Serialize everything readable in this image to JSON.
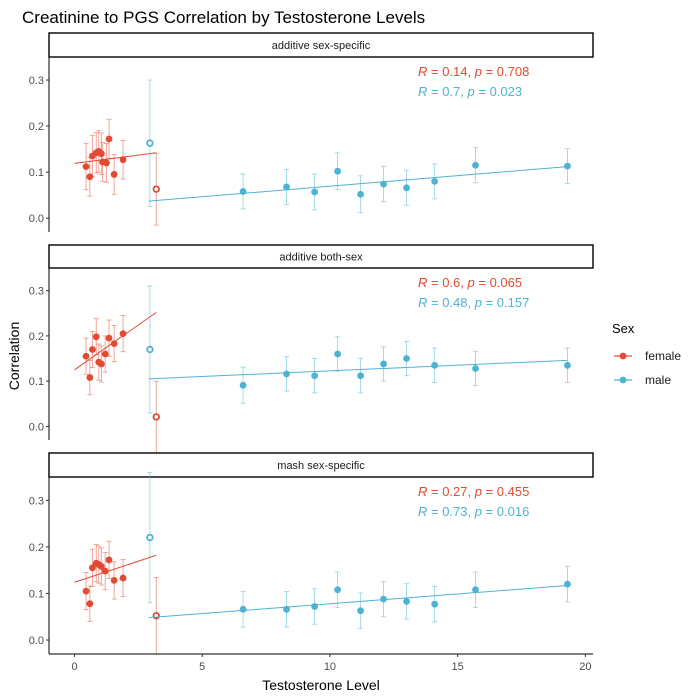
{
  "chart_data": {
    "type": "scatter",
    "title": "Creatinine to PGS Correlation by Testosterone Levels",
    "xlabel": "Testosterone Level",
    "ylabel": "Correlation",
    "xlim": [
      -1,
      20.3
    ],
    "ylim": [
      -0.03,
      0.35
    ],
    "x_ticks": [
      0,
      5,
      10,
      15,
      20
    ],
    "y_ticks": [
      0.0,
      0.1,
      0.2,
      0.3
    ],
    "y_tick_labels": [
      "0.0",
      "0.1",
      "0.2",
      "0.3"
    ],
    "grid": false,
    "legend": {
      "title": "Sex",
      "position": "right",
      "entries": [
        {
          "label": "female",
          "color": "#E24A33"
        },
        {
          "label": "male",
          "color": "#4DB3D3"
        }
      ]
    },
    "colors": {
      "female": "#E24A33",
      "male": "#4DB3D3"
    },
    "panels": [
      {
        "strip": "additive sex-specific",
        "stats": [
          {
            "sex": "female",
            "r_label": "R",
            "r_value": " = 0.14, ",
            "p_label": "p",
            "p_value": " = 0.708"
          },
          {
            "sex": "male",
            "r_label": "R",
            "r_value": " = 0.7, ",
            "p_label": "p",
            "p_value": " = 0.023"
          }
        ],
        "series": [
          {
            "name": "female",
            "points": [
              {
                "x": 0.45,
                "y": 0.112,
                "lo": 0.062,
                "hi": 0.162
              },
              {
                "x": 0.6,
                "y": 0.09,
                "lo": 0.048,
                "hi": 0.132
              },
              {
                "x": 0.7,
                "y": 0.135,
                "lo": 0.09,
                "hi": 0.18
              },
              {
                "x": 0.85,
                "y": 0.142,
                "lo": 0.098,
                "hi": 0.186
              },
              {
                "x": 0.95,
                "y": 0.145,
                "lo": 0.1,
                "hi": 0.19
              },
              {
                "x": 1.05,
                "y": 0.14,
                "lo": 0.095,
                "hi": 0.185
              },
              {
                "x": 1.1,
                "y": 0.122,
                "lo": 0.08,
                "hi": 0.164
              },
              {
                "x": 1.25,
                "y": 0.12,
                "lo": 0.078,
                "hi": 0.162
              },
              {
                "x": 1.35,
                "y": 0.172,
                "lo": 0.13,
                "hi": 0.214
              },
              {
                "x": 1.55,
                "y": 0.095,
                "lo": 0.052,
                "hi": 0.138
              },
              {
                "x": 1.9,
                "y": 0.127,
                "lo": 0.085,
                "hi": 0.169
              },
              {
                "x": 3.2,
                "y": 0.063,
                "lo": -0.015,
                "hi": 0.141,
                "hollow": true
              }
            ],
            "trend": {
              "x0": 0.0,
              "y0": 0.119,
              "x1": 3.2,
              "y1": 0.142
            }
          },
          {
            "name": "male",
            "points": [
              {
                "x": 2.95,
                "y": 0.163,
                "lo": 0.025,
                "hi": 0.3,
                "hollow": true
              },
              {
                "x": 6.6,
                "y": 0.058,
                "lo": 0.02,
                "hi": 0.096
              },
              {
                "x": 8.3,
                "y": 0.068,
                "lo": 0.03,
                "hi": 0.106
              },
              {
                "x": 9.4,
                "y": 0.057,
                "lo": 0.018,
                "hi": 0.096
              },
              {
                "x": 10.3,
                "y": 0.102,
                "lo": 0.062,
                "hi": 0.142
              },
              {
                "x": 11.2,
                "y": 0.052,
                "lo": 0.012,
                "hi": 0.092
              },
              {
                "x": 12.1,
                "y": 0.074,
                "lo": 0.036,
                "hi": 0.112
              },
              {
                "x": 13.0,
                "y": 0.066,
                "lo": 0.028,
                "hi": 0.104
              },
              {
                "x": 14.1,
                "y": 0.08,
                "lo": 0.042,
                "hi": 0.118
              },
              {
                "x": 15.7,
                "y": 0.115,
                "lo": 0.077,
                "hi": 0.153
              },
              {
                "x": 19.3,
                "y": 0.113,
                "lo": 0.075,
                "hi": 0.151
              }
            ],
            "trend": {
              "x0": 2.9,
              "y0": 0.037,
              "x1": 19.3,
              "y1": 0.112
            }
          }
        ]
      },
      {
        "strip": "additive both-sex",
        "stats": [
          {
            "sex": "female",
            "r_label": "R",
            "r_value": " = 0.6, ",
            "p_label": "p",
            "p_value": " = 0.065"
          },
          {
            "sex": "male",
            "r_label": "R",
            "r_value": " = 0.48, ",
            "p_label": "p",
            "p_value": " = 0.157"
          }
        ],
        "series": [
          {
            "name": "female",
            "points": [
              {
                "x": 0.45,
                "y": 0.155,
                "lo": 0.115,
                "hi": 0.195
              },
              {
                "x": 0.6,
                "y": 0.108,
                "lo": 0.07,
                "hi": 0.146
              },
              {
                "x": 0.7,
                "y": 0.17,
                "lo": 0.13,
                "hi": 0.21
              },
              {
                "x": 0.85,
                "y": 0.198,
                "lo": 0.158,
                "hi": 0.238
              },
              {
                "x": 0.95,
                "y": 0.142,
                "lo": 0.102,
                "hi": 0.182
              },
              {
                "x": 1.05,
                "y": 0.138,
                "lo": 0.098,
                "hi": 0.178
              },
              {
                "x": 1.2,
                "y": 0.16,
                "lo": 0.12,
                "hi": 0.2
              },
              {
                "x": 1.35,
                "y": 0.195,
                "lo": 0.155,
                "hi": 0.235
              },
              {
                "x": 1.55,
                "y": 0.183,
                "lo": 0.143,
                "hi": 0.223
              },
              {
                "x": 1.9,
                "y": 0.205,
                "lo": 0.165,
                "hi": 0.245
              },
              {
                "x": 3.2,
                "y": 0.021,
                "lo": -0.06,
                "hi": 0.1,
                "hollow": true
              }
            ],
            "trend": {
              "x0": 0.0,
              "y0": 0.125,
              "x1": 3.2,
              "y1": 0.252
            }
          },
          {
            "name": "male",
            "points": [
              {
                "x": 2.95,
                "y": 0.17,
                "lo": 0.03,
                "hi": 0.31,
                "hollow": true
              },
              {
                "x": 6.6,
                "y": 0.091,
                "lo": 0.051,
                "hi": 0.131
              },
              {
                "x": 8.3,
                "y": 0.116,
                "lo": 0.078,
                "hi": 0.154
              },
              {
                "x": 9.4,
                "y": 0.112,
                "lo": 0.074,
                "hi": 0.15
              },
              {
                "x": 10.3,
                "y": 0.16,
                "lo": 0.122,
                "hi": 0.198
              },
              {
                "x": 11.2,
                "y": 0.112,
                "lo": 0.074,
                "hi": 0.15
              },
              {
                "x": 12.1,
                "y": 0.138,
                "lo": 0.1,
                "hi": 0.176
              },
              {
                "x": 13.0,
                "y": 0.15,
                "lo": 0.112,
                "hi": 0.188
              },
              {
                "x": 14.1,
                "y": 0.135,
                "lo": 0.097,
                "hi": 0.173
              },
              {
                "x": 15.7,
                "y": 0.128,
                "lo": 0.09,
                "hi": 0.166
              },
              {
                "x": 19.3,
                "y": 0.135,
                "lo": 0.097,
                "hi": 0.173
              }
            ],
            "trend": {
              "x0": 2.9,
              "y0": 0.105,
              "x1": 19.3,
              "y1": 0.146
            }
          }
        ]
      },
      {
        "strip": "mash sex-specific",
        "stats": [
          {
            "sex": "female",
            "r_label": "R",
            "r_value": " = 0.27, ",
            "p_label": "p",
            "p_value": " = 0.455"
          },
          {
            "sex": "male",
            "r_label": "R",
            "r_value": " = 0.73, ",
            "p_label": "p",
            "p_value": " = 0.016"
          }
        ],
        "series": [
          {
            "name": "female",
            "points": [
              {
                "x": 0.45,
                "y": 0.105,
                "lo": 0.065,
                "hi": 0.145
              },
              {
                "x": 0.6,
                "y": 0.078,
                "lo": 0.04,
                "hi": 0.116
              },
              {
                "x": 0.7,
                "y": 0.155,
                "lo": 0.115,
                "hi": 0.195
              },
              {
                "x": 0.85,
                "y": 0.165,
                "lo": 0.125,
                "hi": 0.205
              },
              {
                "x": 0.95,
                "y": 0.162,
                "lo": 0.122,
                "hi": 0.202
              },
              {
                "x": 1.05,
                "y": 0.158,
                "lo": 0.118,
                "hi": 0.198
              },
              {
                "x": 1.2,
                "y": 0.148,
                "lo": 0.108,
                "hi": 0.188
              },
              {
                "x": 1.35,
                "y": 0.172,
                "lo": 0.132,
                "hi": 0.212
              },
              {
                "x": 1.55,
                "y": 0.128,
                "lo": 0.088,
                "hi": 0.168
              },
              {
                "x": 1.9,
                "y": 0.133,
                "lo": 0.093,
                "hi": 0.173
              },
              {
                "x": 3.2,
                "y": 0.052,
                "lo": -0.03,
                "hi": 0.134,
                "hollow": true
              }
            ],
            "trend": {
              "x0": 0.0,
              "y0": 0.124,
              "x1": 3.2,
              "y1": 0.182
            }
          },
          {
            "name": "male",
            "points": [
              {
                "x": 2.95,
                "y": 0.22,
                "lo": 0.08,
                "hi": 0.36,
                "hollow": true
              },
              {
                "x": 6.6,
                "y": 0.066,
                "lo": 0.028,
                "hi": 0.104
              },
              {
                "x": 8.3,
                "y": 0.066,
                "lo": 0.028,
                "hi": 0.104
              },
              {
                "x": 9.4,
                "y": 0.072,
                "lo": 0.034,
                "hi": 0.11
              },
              {
                "x": 10.3,
                "y": 0.108,
                "lo": 0.07,
                "hi": 0.146
              },
              {
                "x": 11.2,
                "y": 0.063,
                "lo": 0.025,
                "hi": 0.101
              },
              {
                "x": 12.1,
                "y": 0.088,
                "lo": 0.05,
                "hi": 0.126
              },
              {
                "x": 13.0,
                "y": 0.083,
                "lo": 0.045,
                "hi": 0.121
              },
              {
                "x": 14.1,
                "y": 0.077,
                "lo": 0.039,
                "hi": 0.115
              },
              {
                "x": 15.7,
                "y": 0.108,
                "lo": 0.07,
                "hi": 0.146
              },
              {
                "x": 19.3,
                "y": 0.12,
                "lo": 0.082,
                "hi": 0.158
              }
            ],
            "trend": {
              "x0": 2.9,
              "y0": 0.048,
              "x1": 19.3,
              "y1": 0.117
            }
          }
        ]
      }
    ]
  }
}
